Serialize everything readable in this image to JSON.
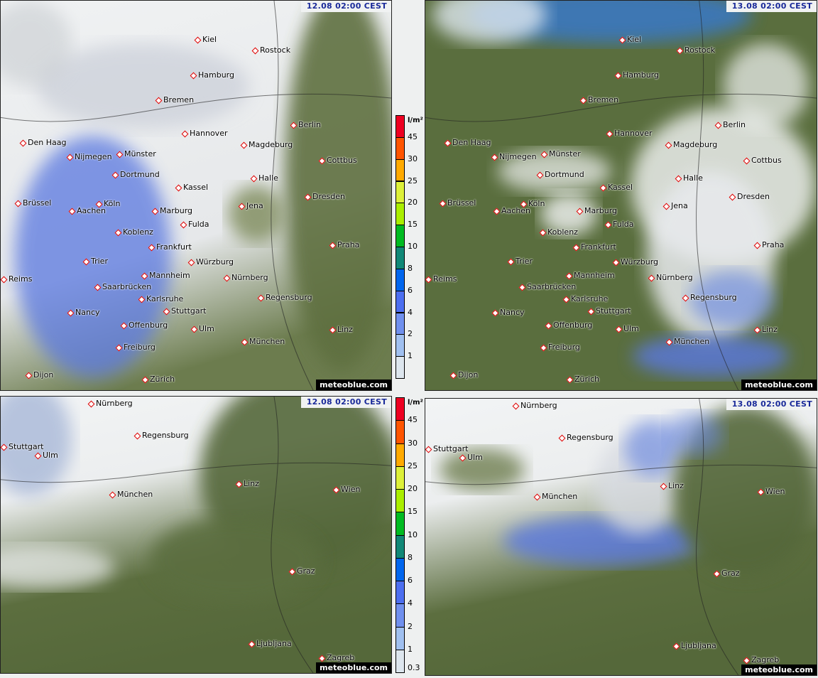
{
  "panels": [
    {
      "timestamp": "12.08  02:00 CEST",
      "watermark": "meteoblue.com",
      "cities": [
        "Kiel",
        "Rostock",
        "Hamburg",
        "Bremen",
        "Berlin",
        "Hannover",
        "Den Haag",
        "Nijmegen",
        "Münster",
        "Magdeburg",
        "Cottbus",
        "Dortmund",
        "Halle",
        "Kassel",
        "Dresden",
        "Brüssel",
        "Aachen",
        "Köln",
        "Jena",
        "Marburg",
        "Fulda",
        "Koblenz",
        "Frankfurt",
        "Praha",
        "Trier",
        "Würzburg",
        "Mannheim",
        "Nürnberg",
        "Reims",
        "Saarbrücken",
        "Karlsruhe",
        "Regensburg",
        "Stuttgart",
        "Nancy",
        "Offenburg",
        "Ulm",
        "Linz",
        "München",
        "Freiburg",
        "Dijon",
        "Zürich"
      ]
    },
    {
      "timestamp": "13.08  02:00 CEST",
      "watermark": "meteoblue.com",
      "cities": [
        "Kiel",
        "Rostock",
        "Hamburg",
        "Bremen",
        "Berlin",
        "Hannover",
        "Den Haag",
        "Nijmegen",
        "Münster",
        "Magdeburg",
        "Cottbus",
        "Dortmund",
        "Halle",
        "Kassel",
        "Dresden",
        "Brüssel",
        "Aachen",
        "Köln",
        "Jena",
        "Marburg",
        "Fulda",
        "Koblenz",
        "Frankfurt",
        "Praha",
        "Trier",
        "Würzburg",
        "Mannheim",
        "Nürnberg",
        "Reims",
        "Saarbrücken",
        "Karlsruhe",
        "Regensburg",
        "Stuttgart",
        "Nancy",
        "Offenburg",
        "Ulm",
        "Linz",
        "München",
        "Freiburg",
        "Dijon",
        "Zürich"
      ]
    },
    {
      "timestamp": "12.08  02:00 CEST",
      "watermark": "meteoblue.com",
      "cities": [
        "Nürnberg",
        "Regensburg",
        "Stuttgart",
        "Ulm",
        "München",
        "Linz",
        "Wien",
        "Graz",
        "Ljubljana",
        "Zagreb"
      ]
    },
    {
      "timestamp": "13.08  02:00 CEST",
      "watermark": "meteoblue.com",
      "cities": [
        "Nürnberg",
        "Regensburg",
        "Stuttgart",
        "Ulm",
        "München",
        "Linz",
        "Wien",
        "Graz",
        "Ljubljana",
        "Zagreb"
      ]
    }
  ],
  "legends": [
    {
      "unit": "l/m²",
      "labels": [
        "45",
        "30",
        "25",
        "20",
        "15",
        "10",
        "8",
        "6",
        "4",
        "2",
        "1"
      ]
    },
    {
      "unit": "l/m²",
      "labels": [
        "45",
        "30",
        "25",
        "20",
        "15",
        "10",
        "8",
        "6",
        "4",
        "2",
        "1",
        "0.3"
      ]
    }
  ],
  "legend_colors": [
    "#ee0022",
    "#ff5500",
    "#ffaa00",
    "#ddf03a",
    "#aaee00",
    "#00bb22",
    "#118877",
    "#0066ee",
    "#4d6ff0",
    "#7090ee",
    "#a0c0f0",
    "#dde6ee"
  ],
  "colors": {
    "land": "#5a6e3e",
    "snow_cloud": "#f4f6f7",
    "rain": "#5a78e0",
    "sea": "#3a78c0",
    "timestamp_text": "#1a2a9a",
    "city_marker": "#dd0000"
  }
}
